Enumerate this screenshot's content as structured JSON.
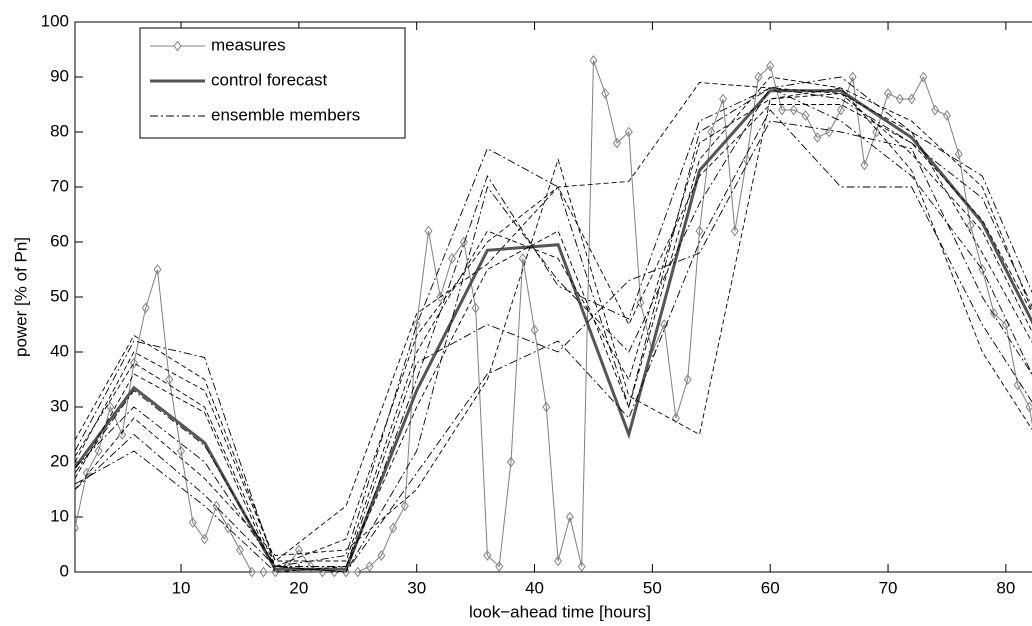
{
  "chart_data": {
    "type": "line",
    "xlabel": "look−ahead time [hours]",
    "ylabel": "power [% of Pn]",
    "xlim": [
      1,
      84
    ],
    "ylim": [
      0,
      100
    ],
    "xticks": [
      10,
      20,
      30,
      40,
      50,
      60,
      70,
      80
    ],
    "yticks": [
      0,
      10,
      20,
      30,
      40,
      50,
      60,
      70,
      80,
      90,
      100
    ],
    "legend": "upper left",
    "series": [
      {
        "name": "measures",
        "color": "#808080",
        "marker": "diamond",
        "x": [
          1,
          2,
          3,
          4,
          5,
          6,
          7,
          8,
          9,
          10,
          11,
          12,
          13,
          14,
          15,
          16,
          17,
          18,
          19,
          20,
          21,
          22,
          23,
          24,
          25,
          26,
          27,
          28,
          29,
          30,
          31,
          32,
          33,
          34,
          35,
          36,
          37,
          38,
          39,
          40,
          41,
          42,
          43,
          44,
          45,
          46,
          47,
          48,
          49,
          50,
          51,
          52,
          53,
          54,
          55,
          56,
          57,
          58,
          59,
          60,
          61,
          62,
          63,
          64,
          65,
          66,
          67,
          68,
          69,
          70,
          71,
          72,
          73,
          74,
          75,
          76,
          77,
          78,
          79,
          80,
          81,
          82,
          83,
          84
        ],
        "values": [
          8,
          18,
          22,
          30,
          25,
          38,
          48,
          55,
          35,
          22,
          9,
          6,
          12,
          8,
          4,
          0,
          0,
          0,
          1,
          4,
          1,
          0,
          0,
          0,
          0,
          1,
          3,
          8,
          12,
          45,
          62,
          50,
          57,
          60,
          48,
          3,
          1,
          20,
          57,
          44,
          30,
          2,
          10,
          1,
          93,
          87,
          78,
          80,
          49,
          40,
          45,
          28,
          35,
          62,
          80,
          86,
          62,
          75,
          90,
          92,
          84,
          84,
          83,
          79,
          80,
          84,
          90,
          74,
          80,
          87,
          86,
          86,
          90,
          84,
          83,
          76,
          63,
          55,
          47,
          45,
          34,
          30,
          17,
          33
        ]
      },
      {
        "name": "control forecast",
        "color": "#555555",
        "x": [
          1,
          6,
          12,
          18,
          24,
          30,
          36,
          42,
          48,
          54,
          60,
          66,
          72,
          78,
          84
        ],
        "values": [
          19,
          33.5,
          23.5,
          0.5,
          0.5,
          33,
          58.5,
          59.5,
          25,
          73,
          87.5,
          87.5,
          79,
          63.5,
          38
        ]
      },
      {
        "name": "ensemble members",
        "color": "#000000",
        "x": [
          1,
          6,
          12,
          18,
          24,
          30,
          36,
          42,
          48,
          54,
          60,
          66,
          72,
          78,
          84
        ],
        "values": [
          [
            22,
            42,
            39,
            1,
            3,
            45,
            77,
            70,
            30,
            80,
            88,
            90,
            80,
            72,
            42
          ],
          [
            17,
            36,
            29,
            0,
            1,
            30,
            55,
            62,
            30,
            75,
            90,
            88,
            82,
            70,
            38
          ],
          [
            15,
            25,
            14,
            1,
            0,
            22,
            70,
            53,
            40,
            67,
            88,
            82,
            72,
            55,
            28
          ],
          [
            20,
            40,
            33,
            2,
            2,
            40,
            62,
            57,
            35,
            78,
            86,
            87,
            80,
            58,
            35
          ],
          [
            16,
            22,
            12,
            0,
            0,
            18,
            36,
            42,
            28,
            60,
            84,
            70,
            70,
            45,
            25
          ],
          [
            24,
            43,
            35,
            2,
            12,
            47,
            56,
            70,
            45,
            72,
            85,
            85,
            78,
            64,
            40
          ],
          [
            19,
            30,
            20,
            1,
            1,
            38,
            45,
            40,
            53,
            58,
            82,
            80,
            77,
            50,
            30
          ],
          [
            15,
            28,
            17,
            3,
            4,
            15,
            35,
            75,
            32,
            25,
            86,
            88,
            73,
            40,
            20
          ],
          [
            18,
            33,
            23,
            1,
            0,
            35,
            72,
            52,
            46,
            82,
            88,
            86,
            78,
            68,
            40
          ],
          [
            21,
            38,
            30,
            1,
            6,
            43,
            60,
            70,
            71,
            89,
            88,
            87,
            76,
            62,
            36
          ]
        ]
      }
    ]
  }
}
